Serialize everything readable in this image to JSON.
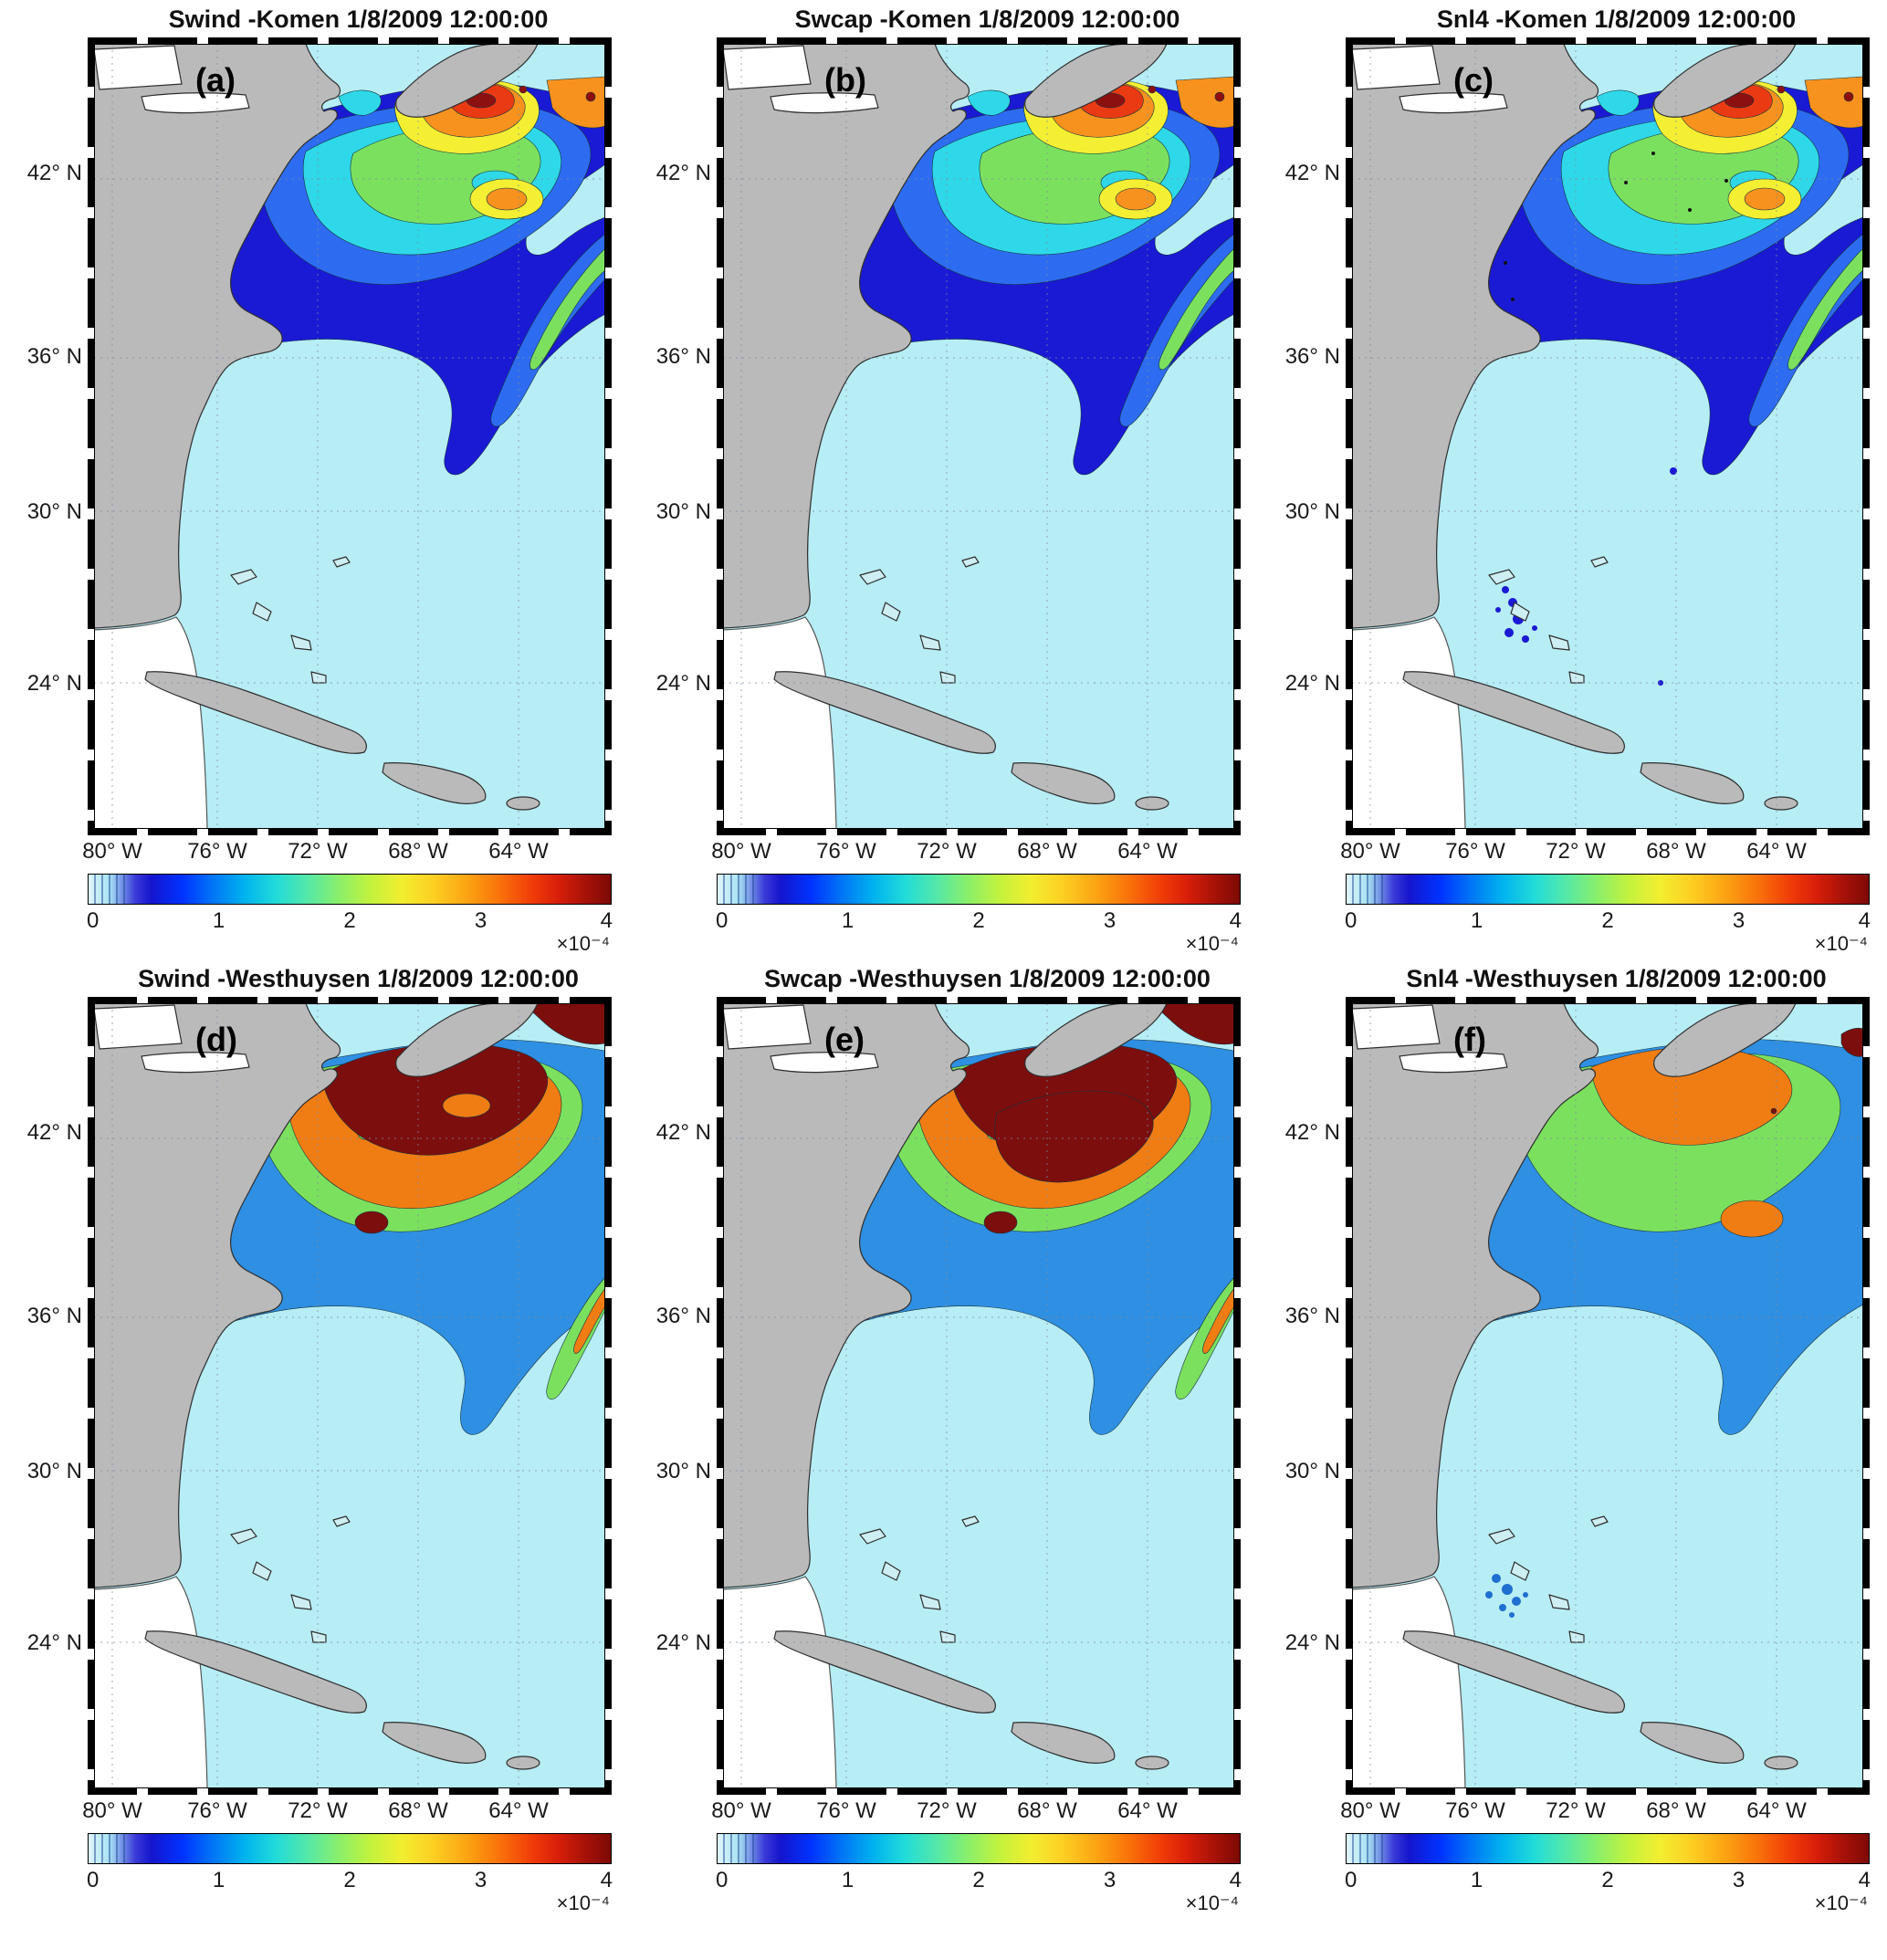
{
  "figure": {
    "axes": {
      "lat_ticks": [
        "42° N",
        "36° N",
        "30° N",
        "24° N"
      ],
      "lon_ticks": [
        "80° W",
        "76° W",
        "72° W",
        "68° W",
        "64° W"
      ]
    },
    "colorbar": {
      "tick_labels": [
        "0",
        "1",
        "2",
        "3",
        "4"
      ],
      "exponent": "×10⁻⁴",
      "min": 0,
      "max": 4
    },
    "panels": [
      {
        "letter": "(a)",
        "title": "Swind -Komen 1/8/2009 12:00:00",
        "variant": "komen"
      },
      {
        "letter": "(b)",
        "title": "Swcap -Komen 1/8/2009 12:00:00",
        "variant": "komen"
      },
      {
        "letter": "(c)",
        "title": "Snl4 -Komen 1/8/2009 12:00:00",
        "variant": "komen-snl4"
      },
      {
        "letter": "(d)",
        "title": "Swind -Westhuysen 1/8/2009 12:00:00",
        "variant": "west-hot"
      },
      {
        "letter": "(e)",
        "title": "Swcap -Westhuysen 1/8/2009 12:00:00",
        "variant": "west-hot2"
      },
      {
        "letter": "(f)",
        "title": "Snl4  -Westhuysen 1/8/2009 12:00:00",
        "variant": "west-snl4"
      }
    ],
    "colors": {
      "ocean": "#b7edf5",
      "land": "#bababa",
      "navy": "#1a1ad4",
      "blue": "#2d6cf0",
      "cyan": "#2fd8e8",
      "green": "#7ce05f",
      "yellow": "#f4ef33",
      "orange": "#f8921e",
      "red": "#ea3a14",
      "darkred": "#8d1010"
    }
  },
  "chart_data": [
    {
      "type": "heatmap",
      "panel": "(a)",
      "quantity": "Swind",
      "formulation": "Komen",
      "datetime": "1/8/2009 12:00:00",
      "lon_ticks_deg_w": [
        80,
        76,
        72,
        68,
        64
      ],
      "lat_ticks_deg_n": [
        42,
        36,
        30,
        24
      ],
      "value_range": [
        0,
        4
      ],
      "value_scale": "1e-4",
      "contour_interval_1e4": 0.25,
      "approx_max_value_1e4": 4.0,
      "high_value_region": "38-44N, 62-70W (Gulf of Maine / south of Nova Scotia), 2-4e-4 with dark-red core near 42N 66W",
      "mid_value_region": "navy band 0.5-1e-4 from 34-38N extending southeast tongue to ~30N 63W",
      "low_value_region": "south of 32N mostly < 0.5e-4"
    },
    {
      "type": "heatmap",
      "panel": "(b)",
      "quantity": "Swcap",
      "formulation": "Komen",
      "datetime": "1/8/2009 12:00:00",
      "lon_ticks_deg_w": [
        80,
        76,
        72,
        68,
        64
      ],
      "lat_ticks_deg_n": [
        42,
        36,
        30,
        24
      ],
      "value_range": [
        0,
        4
      ],
      "value_scale": "1e-4",
      "contour_interval_1e4": 0.25,
      "approx_max_value_1e4": 3.8,
      "high_value_region": "38-44N east of 72W, yellow-orange 2.5-3.5e-4, small red maxima near 42-43N 65-67W",
      "mid_value_region": "navy band 0.5-1e-4 across 34-38N with southeast tongue",
      "low_value_region": "south of 32N mostly < 0.5e-4"
    },
    {
      "type": "heatmap",
      "panel": "(c)",
      "quantity": "Snl4",
      "formulation": "Komen",
      "datetime": "1/8/2009 12:00:00",
      "lon_ticks_deg_w": [
        80,
        76,
        72,
        68,
        64
      ],
      "lat_ticks_deg_n": [
        42,
        36,
        30,
        24
      ],
      "value_range": [
        0,
        4
      ],
      "value_scale": "1e-4",
      "contour_interval_1e4": 0.25,
      "approx_max_value_1e4": 4.0,
      "high_value_region": "38-44N east of 72W, speckled green-yellow-orange 2-3.5e-4, orange-red maximum near 39N 65W",
      "mid_value_region": "navy band 0.5-1e-4 at 34-38N; scattered dark-blue patches near Bahamas ~24N 76W",
      "low_value_region": "south of 32N mostly < 0.5e-4"
    },
    {
      "type": "heatmap",
      "panel": "(d)",
      "quantity": "Swind",
      "formulation": "Westhuysen",
      "datetime": "1/8/2009 12:00:00",
      "lon_ticks_deg_w": [
        80,
        76,
        72,
        68,
        64
      ],
      "lat_ticks_deg_n": [
        42,
        36,
        30,
        24
      ],
      "value_range": [
        0,
        4
      ],
      "value_scale": "1e-4",
      "contour_interval_1e4": 0.25,
      "approx_max_value_1e4": 4.0,
      "high_value_region": "broad dark-red saturation >3.5e-4 over 39-44N 63-71W surrounded by large orange 3e-4 area",
      "mid_value_region": "blue 0.75-1.5e-4 belt 33-38N with southeast tongue",
      "low_value_region": "south of 32N mostly < 0.5e-4"
    },
    {
      "type": "heatmap",
      "panel": "(e)",
      "quantity": "Swcap",
      "formulation": "Westhuysen",
      "datetime": "1/8/2009 12:00:00",
      "lon_ticks_deg_w": [
        80,
        76,
        72,
        68,
        64
      ],
      "lat_ticks_deg_n": [
        42,
        36,
        30,
        24
      ],
      "value_range": [
        0,
        4
      ],
      "value_scale": "1e-4",
      "contour_interval_1e4": 0.25,
      "approx_max_value_1e4": 4.0,
      "high_value_region": "even larger dark-red saturation >3.5e-4 centered 38-44N 63-70W, orange rim 3e-4",
      "mid_value_region": "blue 0.75-1.5e-4 belt 33-38N with southeast tongue",
      "low_value_region": "south of 32N mostly < 0.5e-4"
    },
    {
      "type": "heatmap",
      "panel": "(f)",
      "quantity": "Snl4",
      "formulation": "Westhuysen",
      "datetime": "1/8/2009 12:00:00",
      "lon_ticks_deg_w": [
        80,
        76,
        72,
        68,
        64
      ],
      "lat_ticks_deg_n": [
        42,
        36,
        30,
        24
      ],
      "value_range": [
        0,
        4
      ],
      "value_scale": "1e-4",
      "contour_interval_1e4": 0.25,
      "approx_max_value_1e4": 3.2,
      "high_value_region": "orange ~3e-4 over 40-44N 63-69W inside large green ~2e-4 region 36-43N; small dark-red patch at extreme NE corner",
      "mid_value_region": "blue ~1e-4 rim; scattered blue patches near Bahamas ~24N 77W",
      "low_value_region": "south of 32N mostly < 0.5e-4"
    }
  ]
}
